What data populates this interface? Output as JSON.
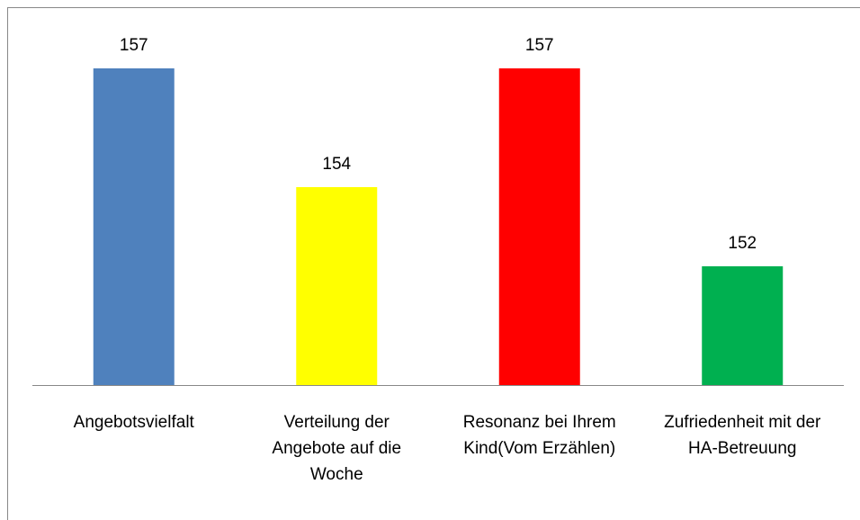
{
  "chart_data": {
    "type": "bar",
    "categories": [
      "Angebotsvielfalt",
      "Verteilung der Angebote auf die Woche",
      "Resonanz bei Ihrem Kind(Vom Erzählen)",
      "Zufriedenheit mit der HA-Betreuung"
    ],
    "values": [
      157,
      154,
      157,
      152
    ],
    "colors": [
      "#4f81bd",
      "#ffff00",
      "#ff0000",
      "#00b050"
    ],
    "ylim": [
      149,
      158
    ]
  }
}
